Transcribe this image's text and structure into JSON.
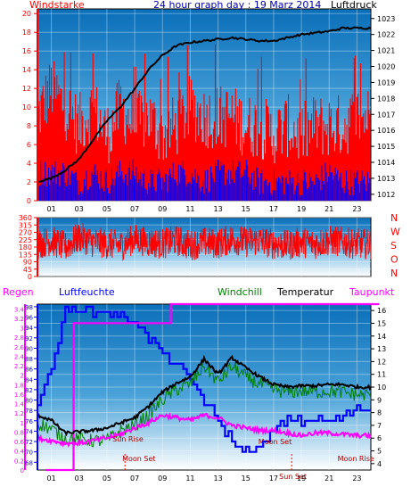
{
  "chart_data": [
    {
      "type": "line",
      "panel": "wind-pressure",
      "title": "24 hour graph day : 19 Marz 2014",
      "y_left_label": "Windstarke",
      "y_right_label": "Luftdruck",
      "x_ticks": [
        "01",
        "03",
        "05",
        "07",
        "09",
        "11",
        "13",
        "15",
        "17",
        "19",
        "21",
        "23"
      ],
      "y_left_ticks": [
        0,
        2,
        4,
        6,
        8,
        10,
        12,
        14,
        16,
        18,
        20
      ],
      "y_left_range": [
        0,
        20.5
      ],
      "y_right_ticks": [
        1012,
        1013,
        1014,
        1015,
        1016,
        1017,
        1018,
        1019,
        1020,
        1021,
        1022,
        1023
      ],
      "y_right_range": [
        1011.6,
        1023.6
      ],
      "series": [
        {
          "name": "Windstarke",
          "color": "#ff0000",
          "hourly": [
            9,
            12,
            10,
            8,
            10,
            7,
            10,
            8,
            9,
            7,
            8,
            10,
            9,
            9,
            9,
            8,
            8,
            7,
            8,
            7,
            8,
            8,
            8,
            9
          ]
        },
        {
          "name": "",
          "color": "#0000ff",
          "hourly": [
            3,
            3,
            3,
            2,
            3,
            2,
            3,
            3,
            2,
            2,
            3,
            3,
            2,
            3,
            3,
            3,
            2,
            2,
            2,
            2,
            2,
            3,
            2,
            2
          ]
        },
        {
          "name": "Luftdruck",
          "color": "#000000",
          "hourly": [
            1012.8,
            1013.0,
            1013.5,
            1014.2,
            1015.4,
            1016.6,
            1017.5,
            1018.6,
            1019.8,
            1020.7,
            1021.3,
            1021.5,
            1021.6,
            1021.7,
            1021.8,
            1021.7,
            1021.6,
            1021.6,
            1021.8,
            1022.0,
            1022.1,
            1022.2,
            1022.4,
            1022.4
          ]
        }
      ]
    },
    {
      "type": "line",
      "panel": "wind-direction",
      "y_left_ticks": [
        0,
        45,
        90,
        135,
        180,
        225,
        270,
        315,
        360
      ],
      "y_left_range": [
        0,
        360
      ],
      "y_right_labels": [
        "N",
        "W",
        "S",
        "O",
        "N"
      ],
      "series": [
        {
          "name": "Windrichtung",
          "color": "#ff0000",
          "hourly": [
            200,
            220,
            180,
            240,
            210,
            200,
            190,
            230,
            210,
            200,
            220,
            190,
            210,
            200,
            230,
            210,
            220,
            200,
            190,
            210,
            200,
            220,
            210,
            200
          ]
        }
      ]
    },
    {
      "type": "line",
      "panel": "humidity-temperature",
      "labels": {
        "regen": "Regen",
        "luftfeuchte": "Luftfeuchte",
        "windchill": "Windchill",
        "temperatur": "Temperatur",
        "taupunkt": "Taupunkt"
      },
      "y_regen_ticks": [
        "0",
        "0.2",
        "0.4",
        "0.6",
        "0.8",
        "1",
        "1.2",
        "1.4",
        "1.6",
        "1.8",
        "2",
        "2.2",
        "2.4",
        "2.6",
        "2.8",
        "3",
        "3.2",
        "3.4"
      ],
      "y_regen_range": [
        0,
        3.5
      ],
      "y_humidity_ticks": [
        68,
        70,
        72,
        74,
        76,
        78,
        80,
        82,
        84,
        86,
        88,
        90,
        92,
        94,
        96,
        98
      ],
      "y_humidity_range": [
        66.5,
        98.5
      ],
      "y_temp_ticks": [
        4,
        5,
        6,
        7,
        8,
        9,
        10,
        11,
        12,
        13,
        14,
        15,
        16
      ],
      "y_temp_range": [
        3.5,
        16.5
      ],
      "x_ticks": [
        "01",
        "03",
        "05",
        "07",
        "09",
        "11",
        "13",
        "15",
        "17",
        "19",
        "21",
        "23"
      ],
      "annotations": [
        {
          "text": "Sun Rise",
          "hour": 6.3
        },
        {
          "text": "Moon Set",
          "hour": 7.0
        },
        {
          "text": "Sun Set",
          "hour": 18.3
        },
        {
          "text": "Moon Set",
          "hour": 16.8
        },
        {
          "text": "Moon Rise",
          "hour": 22.5
        }
      ],
      "series": [
        {
          "name": "Luftfeuchte",
          "color": "#0000ff",
          "hourly": [
            80,
            86,
            97,
            98,
            97,
            97,
            96,
            95,
            92,
            89,
            87,
            84,
            80,
            76,
            72,
            70,
            71,
            74,
            76,
            76,
            76,
            76,
            77,
            78
          ]
        },
        {
          "name": "Regen",
          "color": "#ff00ff",
          "hourly": [
            0,
            0,
            3.1,
            3.1,
            3.1,
            3.1,
            3.1,
            3.1,
            3.1,
            3.5,
            3.5,
            3.5,
            3.5,
            3.5,
            3.5,
            3.5,
            3.5,
            3.5,
            3.5,
            3.5,
            3.5,
            3.5,
            3.5,
            3.5
          ]
        },
        {
          "name": "Temperatur",
          "color": "#000000",
          "hourly": [
            7.8,
            7.4,
            6.4,
            6.5,
            6.6,
            6.8,
            7.2,
            7.6,
            8.5,
            9.6,
            10.3,
            10.8,
            12.2,
            11.0,
            12.3,
            11.5,
            10.8,
            10.2,
            10.0,
            10.1,
            10.1,
            10.2,
            10.2,
            10.0
          ]
        },
        {
          "name": "Windchill",
          "color": "#008000",
          "hourly": [
            7.2,
            6.7,
            6.0,
            5.9,
            5.8,
            5.8,
            6.6,
            7.0,
            7.8,
            9.0,
            9.8,
            10.2,
            11.7,
            10.4,
            11.6,
            10.8,
            10.2,
            9.8,
            9.6,
            9.7,
            9.6,
            9.7,
            9.6,
            9.4
          ]
        },
        {
          "name": "Taupunkt",
          "color": "#ff00ff",
          "hourly": [
            6.0,
            5.8,
            5.6,
            5.6,
            5.8,
            6.0,
            6.3,
            6.8,
            7.2,
            7.8,
            7.6,
            7.4,
            7.8,
            7.6,
            7.0,
            6.8,
            6.6,
            6.6,
            6.4,
            6.2,
            6.4,
            6.4,
            6.3,
            6.2
          ]
        }
      ]
    }
  ]
}
